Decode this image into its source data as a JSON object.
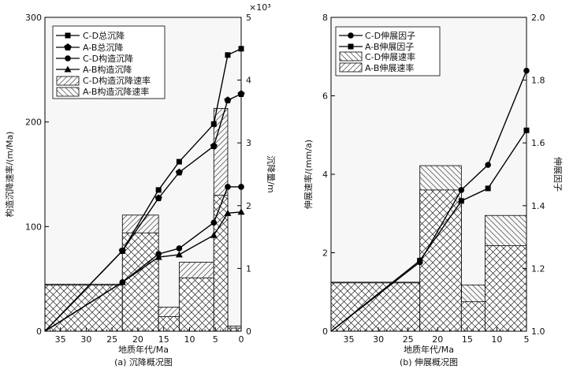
{
  "chart_data": [
    {
      "type": "bar",
      "title": "(a) 沉降概况图",
      "xlabel": "地质年代/Ma",
      "ylabel": "构造沉降速率/(m/Ma)",
      "y2label": "沉降量/m",
      "y2_multiplier": "×10³",
      "xlim": [
        38,
        0
      ],
      "ylim": [
        0,
        300
      ],
      "y2lim": [
        0,
        5
      ],
      "xticks": [
        "35",
        "30",
        "25",
        "20",
        "15",
        "10",
        "5",
        "0"
      ],
      "yticks": [
        "0",
        "100",
        "200",
        "300"
      ],
      "y2ticks": [
        "0",
        "1",
        "2",
        "3",
        "4",
        "5"
      ],
      "bars": [
        {
          "x0": 38,
          "x1": 23,
          "cd": 45,
          "ab": 44
        },
        {
          "x0": 23,
          "x1": 16,
          "cd": 111,
          "ab": 94
        },
        {
          "x0": 16,
          "x1": 12,
          "cd": 23,
          "ab": 14
        },
        {
          "x0": 12,
          "x1": 5.3,
          "cd": 66,
          "ab": 51
        },
        {
          "x0": 5.3,
          "x1": 2.6,
          "cd": 213,
          "ab": 130
        },
        {
          "x0": 2.6,
          "x1": 0,
          "cd": 5,
          "ab": 3
        }
      ],
      "series": [
        {
          "name": "C-D总沉降",
          "marker": "square",
          "x": [
            38,
            23,
            16,
            12,
            5.3,
            2.6,
            0
          ],
          "y": [
            0,
            1.28,
            2.25,
            2.7,
            3.3,
            4.4,
            4.5
          ]
        },
        {
          "name": "A-B总沉降",
          "marker": "pentagon",
          "x": [
            38,
            23,
            16,
            12,
            5.3,
            2.6,
            0
          ],
          "y": [
            0,
            1.28,
            2.12,
            2.53,
            2.95,
            3.68,
            3.78
          ]
        },
        {
          "name": "C-D构造沉降",
          "marker": "circle",
          "x": [
            38,
            23,
            16,
            12,
            5.3,
            2.6,
            0
          ],
          "y": [
            0,
            0.78,
            1.23,
            1.32,
            1.73,
            2.3,
            2.3
          ]
        },
        {
          "name": "A-B构造沉降",
          "marker": "triangle",
          "x": [
            38,
            23,
            16,
            12,
            5.3,
            2.6,
            0
          ],
          "y": [
            0,
            0.78,
            1.18,
            1.22,
            1.53,
            1.88,
            1.9
          ]
        }
      ],
      "legend": [
        "C-D总沉降",
        "A-B总沉降",
        "C-D构造沉降",
        "A-B构造沉降",
        "C-D构造沉降速率",
        "A-B构造沉降速率"
      ]
    },
    {
      "type": "bar",
      "title": "(b) 伸展概况图",
      "xlabel": "地质年代/Ma",
      "ylabel": "伸展速率/(mm/a)",
      "y2label": "伸展因子",
      "xlim": [
        38,
        5
      ],
      "ylim": [
        0,
        8
      ],
      "y2lim": [
        1.0,
        2.0
      ],
      "xticks": [
        "35",
        "30",
        "25",
        "20",
        "15",
        "10",
        "5"
      ],
      "yticks": [
        "0",
        "2",
        "4",
        "6",
        "8"
      ],
      "y2ticks": [
        "1.0",
        "1.2",
        "1.4",
        "1.6",
        "1.8",
        "2.0"
      ],
      "bars": [
        {
          "x0": 38,
          "x1": 23,
          "cd": 1.25,
          "ab": 1.23
        },
        {
          "x0": 23,
          "x1": 16,
          "cd": 4.22,
          "ab": 3.6
        },
        {
          "x0": 16,
          "x1": 12,
          "cd": 1.18,
          "ab": 0.75
        },
        {
          "x0": 12,
          "x1": 5,
          "cd": 2.95,
          "ab": 2.18
        }
      ],
      "series": [
        {
          "name": "C-D伸展因子",
          "marker": "circle",
          "x": [
            38,
            23,
            16,
            11.5,
            5
          ],
          "y": [
            1.0,
            1.22,
            1.45,
            1.53,
            1.83
          ]
        },
        {
          "name": "A-B伸展因子",
          "marker": "square",
          "x": [
            38,
            23,
            16,
            11.5,
            5
          ],
          "y": [
            1.0,
            1.225,
            1.415,
            1.455,
            1.64
          ]
        }
      ],
      "legend": [
        "C-D伸展因子",
        "A-B伸展因子",
        "C-D伸展速率",
        "A-B伸展速率"
      ]
    }
  ]
}
